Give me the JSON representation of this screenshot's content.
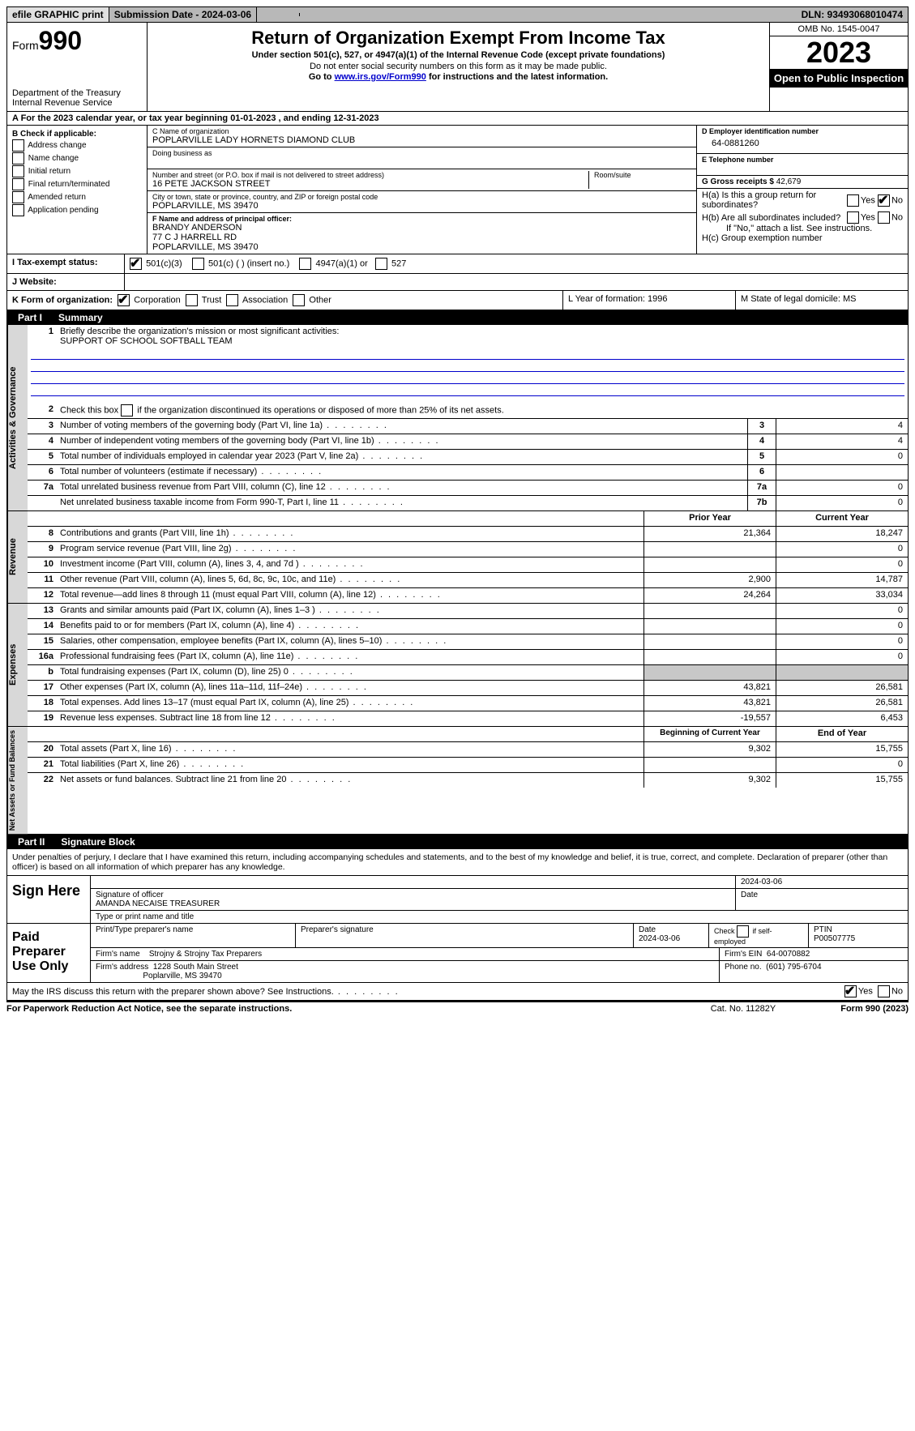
{
  "topbar": {
    "efile": "efile GRAPHIC print",
    "submission": "Submission Date - 2024-03-06",
    "dln": "DLN: 93493068010474"
  },
  "header": {
    "form_prefix": "Form",
    "form_num": "990",
    "dept": "Department of the Treasury",
    "irs": "Internal Revenue Service",
    "title": "Return of Organization Exempt From Income Tax",
    "sub": "Under section 501(c), 527, or 4947(a)(1) of the Internal Revenue Code (except private foundations)",
    "note1": "Do not enter social security numbers on this form as it may be made public.",
    "note2_pre": "Go to ",
    "note2_link": "www.irs.gov/Form990",
    "note2_post": " for instructions and the latest information.",
    "omb": "OMB No. 1545-0047",
    "year": "2023",
    "open": "Open to Public Inspection"
  },
  "row_a": "A  For the 2023 calendar year, or tax year beginning 01-01-2023    , and ending 12-31-2023",
  "col_b": {
    "title": "B Check if applicable:",
    "opts": [
      "Address change",
      "Name change",
      "Initial return",
      "Final return/terminated",
      "Amended return",
      "Application pending"
    ]
  },
  "col_c": {
    "name_lbl": "C Name of organization",
    "name": "POPLARVILLE LADY HORNETS DIAMOND CLUB",
    "dba_lbl": "Doing business as",
    "addr_lbl": "Number and street (or P.O. box if mail is not delivered to street address)",
    "addr": "16 PETE JACKSON STREET",
    "room_lbl": "Room/suite",
    "city_lbl": "City or town, state or province, country, and ZIP or foreign postal code",
    "city": "POPLARVILLE, MS  39470",
    "officer_lbl": "F  Name and address of principal officer:",
    "officer_name": "BRANDY ANDERSON",
    "officer_addr1": "77 C J HARRELL RD",
    "officer_addr2": "POPLARVILLE, MS  39470"
  },
  "col_de": {
    "ein_lbl": "D Employer identification number",
    "ein": "64-0881260",
    "tel_lbl": "E Telephone number",
    "gross_lbl": "G Gross receipts $ ",
    "gross": "42,679",
    "ha": "H(a)  Is this a group return for subordinates?",
    "hb": "H(b)  Are all subordinates included?",
    "hb_note": "If \"No,\" attach a list. See instructions.",
    "hc": "H(c)  Group exemption number"
  },
  "status": {
    "i_lbl": "I   Tax-exempt status:",
    "opts": [
      "501(c)(3)",
      "501(c) (  ) (insert no.)",
      "4947(a)(1) or",
      "527"
    ],
    "j_lbl": "J   Website:"
  },
  "korg": {
    "k": "K Form of organization:",
    "opts": [
      "Corporation",
      "Trust",
      "Association",
      "Other"
    ],
    "l": "L Year of formation: 1996",
    "m": "M State of legal domicile: MS"
  },
  "part1": {
    "title": "Part I",
    "name": "Summary",
    "mission_lbl": "Briefly describe the organization's mission or most significant activities:",
    "mission": "SUPPORT OF SCHOOL SOFTBALL TEAM",
    "line2": "Check this box      if the organization discontinued its operations or disposed of more than 25% of its net assets.",
    "rows_gov": [
      {
        "n": "3",
        "t": "Number of voting members of the governing body (Part VI, line 1a)",
        "b": "3",
        "v": "4"
      },
      {
        "n": "4",
        "t": "Number of independent voting members of the governing body (Part VI, line 1b)",
        "b": "4",
        "v": "4"
      },
      {
        "n": "5",
        "t": "Total number of individuals employed in calendar year 2023 (Part V, line 2a)",
        "b": "5",
        "v": "0"
      },
      {
        "n": "6",
        "t": "Total number of volunteers (estimate if necessary)",
        "b": "6",
        "v": ""
      },
      {
        "n": "7a",
        "t": "Total unrelated business revenue from Part VIII, column (C), line 12",
        "b": "7a",
        "v": "0"
      },
      {
        "n": "",
        "t": "Net unrelated business taxable income from Form 990-T, Part I, line 11",
        "b": "7b",
        "v": "0"
      }
    ],
    "col_hdr_prior": "Prior Year",
    "col_hdr_curr": "Current Year",
    "rows_rev": [
      {
        "n": "8",
        "t": "Contributions and grants (Part VIII, line 1h)",
        "p": "21,364",
        "c": "18,247"
      },
      {
        "n": "9",
        "t": "Program service revenue (Part VIII, line 2g)",
        "p": "",
        "c": "0"
      },
      {
        "n": "10",
        "t": "Investment income (Part VIII, column (A), lines 3, 4, and 7d )",
        "p": "",
        "c": "0"
      },
      {
        "n": "11",
        "t": "Other revenue (Part VIII, column (A), lines 5, 6d, 8c, 9c, 10c, and 11e)",
        "p": "2,900",
        "c": "14,787"
      },
      {
        "n": "12",
        "t": "Total revenue—add lines 8 through 11 (must equal Part VIII, column (A), line 12)",
        "p": "24,264",
        "c": "33,034"
      }
    ],
    "rows_exp": [
      {
        "n": "13",
        "t": "Grants and similar amounts paid (Part IX, column (A), lines 1–3 )",
        "p": "",
        "c": "0"
      },
      {
        "n": "14",
        "t": "Benefits paid to or for members (Part IX, column (A), line 4)",
        "p": "",
        "c": "0"
      },
      {
        "n": "15",
        "t": "Salaries, other compensation, employee benefits (Part IX, column (A), lines 5–10)",
        "p": "",
        "c": "0"
      },
      {
        "n": "16a",
        "t": "Professional fundraising fees (Part IX, column (A), line 11e)",
        "p": "",
        "c": "0"
      },
      {
        "n": "b",
        "t": "Total fundraising expenses (Part IX, column (D), line 25) 0",
        "p": "SHADE",
        "c": "SHADE"
      },
      {
        "n": "17",
        "t": "Other expenses (Part IX, column (A), lines 11a–11d, 11f–24e)",
        "p": "43,821",
        "c": "26,581"
      },
      {
        "n": "18",
        "t": "Total expenses. Add lines 13–17 (must equal Part IX, column (A), line 25)",
        "p": "43,821",
        "c": "26,581"
      },
      {
        "n": "19",
        "t": "Revenue less expenses. Subtract line 18 from line 12",
        "p": "-19,557",
        "c": "6,453"
      }
    ],
    "col_hdr_beg": "Beginning of Current Year",
    "col_hdr_end": "End of Year",
    "rows_net": [
      {
        "n": "20",
        "t": "Total assets (Part X, line 16)",
        "p": "9,302",
        "c": "15,755"
      },
      {
        "n": "21",
        "t": "Total liabilities (Part X, line 26)",
        "p": "",
        "c": "0"
      },
      {
        "n": "22",
        "t": "Net assets or fund balances. Subtract line 21 from line 20",
        "p": "9,302",
        "c": "15,755"
      }
    ]
  },
  "part2": {
    "title": "Part II",
    "name": "Signature Block",
    "intro": "Under penalties of perjury, I declare that I have examined this return, including accompanying schedules and statements, and to the best of my knowledge and belief, it is true, correct, and complete. Declaration of preparer (other than officer) is based on all information of which preparer has any knowledge.",
    "sign_here": "Sign Here",
    "sig_date": "2024-03-06",
    "sig_of_officer_lbl": "Signature of officer",
    "sig_officer": "AMANDA NECAISE  TREASURER",
    "type_lbl": "Type or print name and title",
    "date_lbl": "Date",
    "paid": "Paid Preparer Use Only",
    "prep_name_lbl": "Print/Type preparer's name",
    "prep_sig_lbl": "Preparer's signature",
    "prep_date_lbl": "Date",
    "prep_date": "2024-03-06",
    "prep_check_lbl": "Check        if self-employed",
    "ptin_lbl": "PTIN",
    "ptin": "P00507775",
    "firm_name_lbl": "Firm's name",
    "firm_name": "Strojny & Strojny Tax Preparers",
    "firm_ein_lbl": "Firm's EIN",
    "firm_ein": "64-0070882",
    "firm_addr_lbl": "Firm's address",
    "firm_addr1": "1228 South Main Street",
    "firm_addr2": "Poplarville, MS  39470",
    "phone_lbl": "Phone no.",
    "phone": "(601) 795-6704",
    "discuss": "May the IRS discuss this return with the preparer shown above? See Instructions."
  },
  "footer": {
    "pra": "For Paperwork Reduction Act Notice, see the separate instructions.",
    "cat": "Cat. No. 11282Y",
    "form": "Form 990 (2023)"
  },
  "vtabs": {
    "gov": "Activities & Governance",
    "rev": "Revenue",
    "exp": "Expenses",
    "net": "Net Assets or Fund Balances"
  }
}
